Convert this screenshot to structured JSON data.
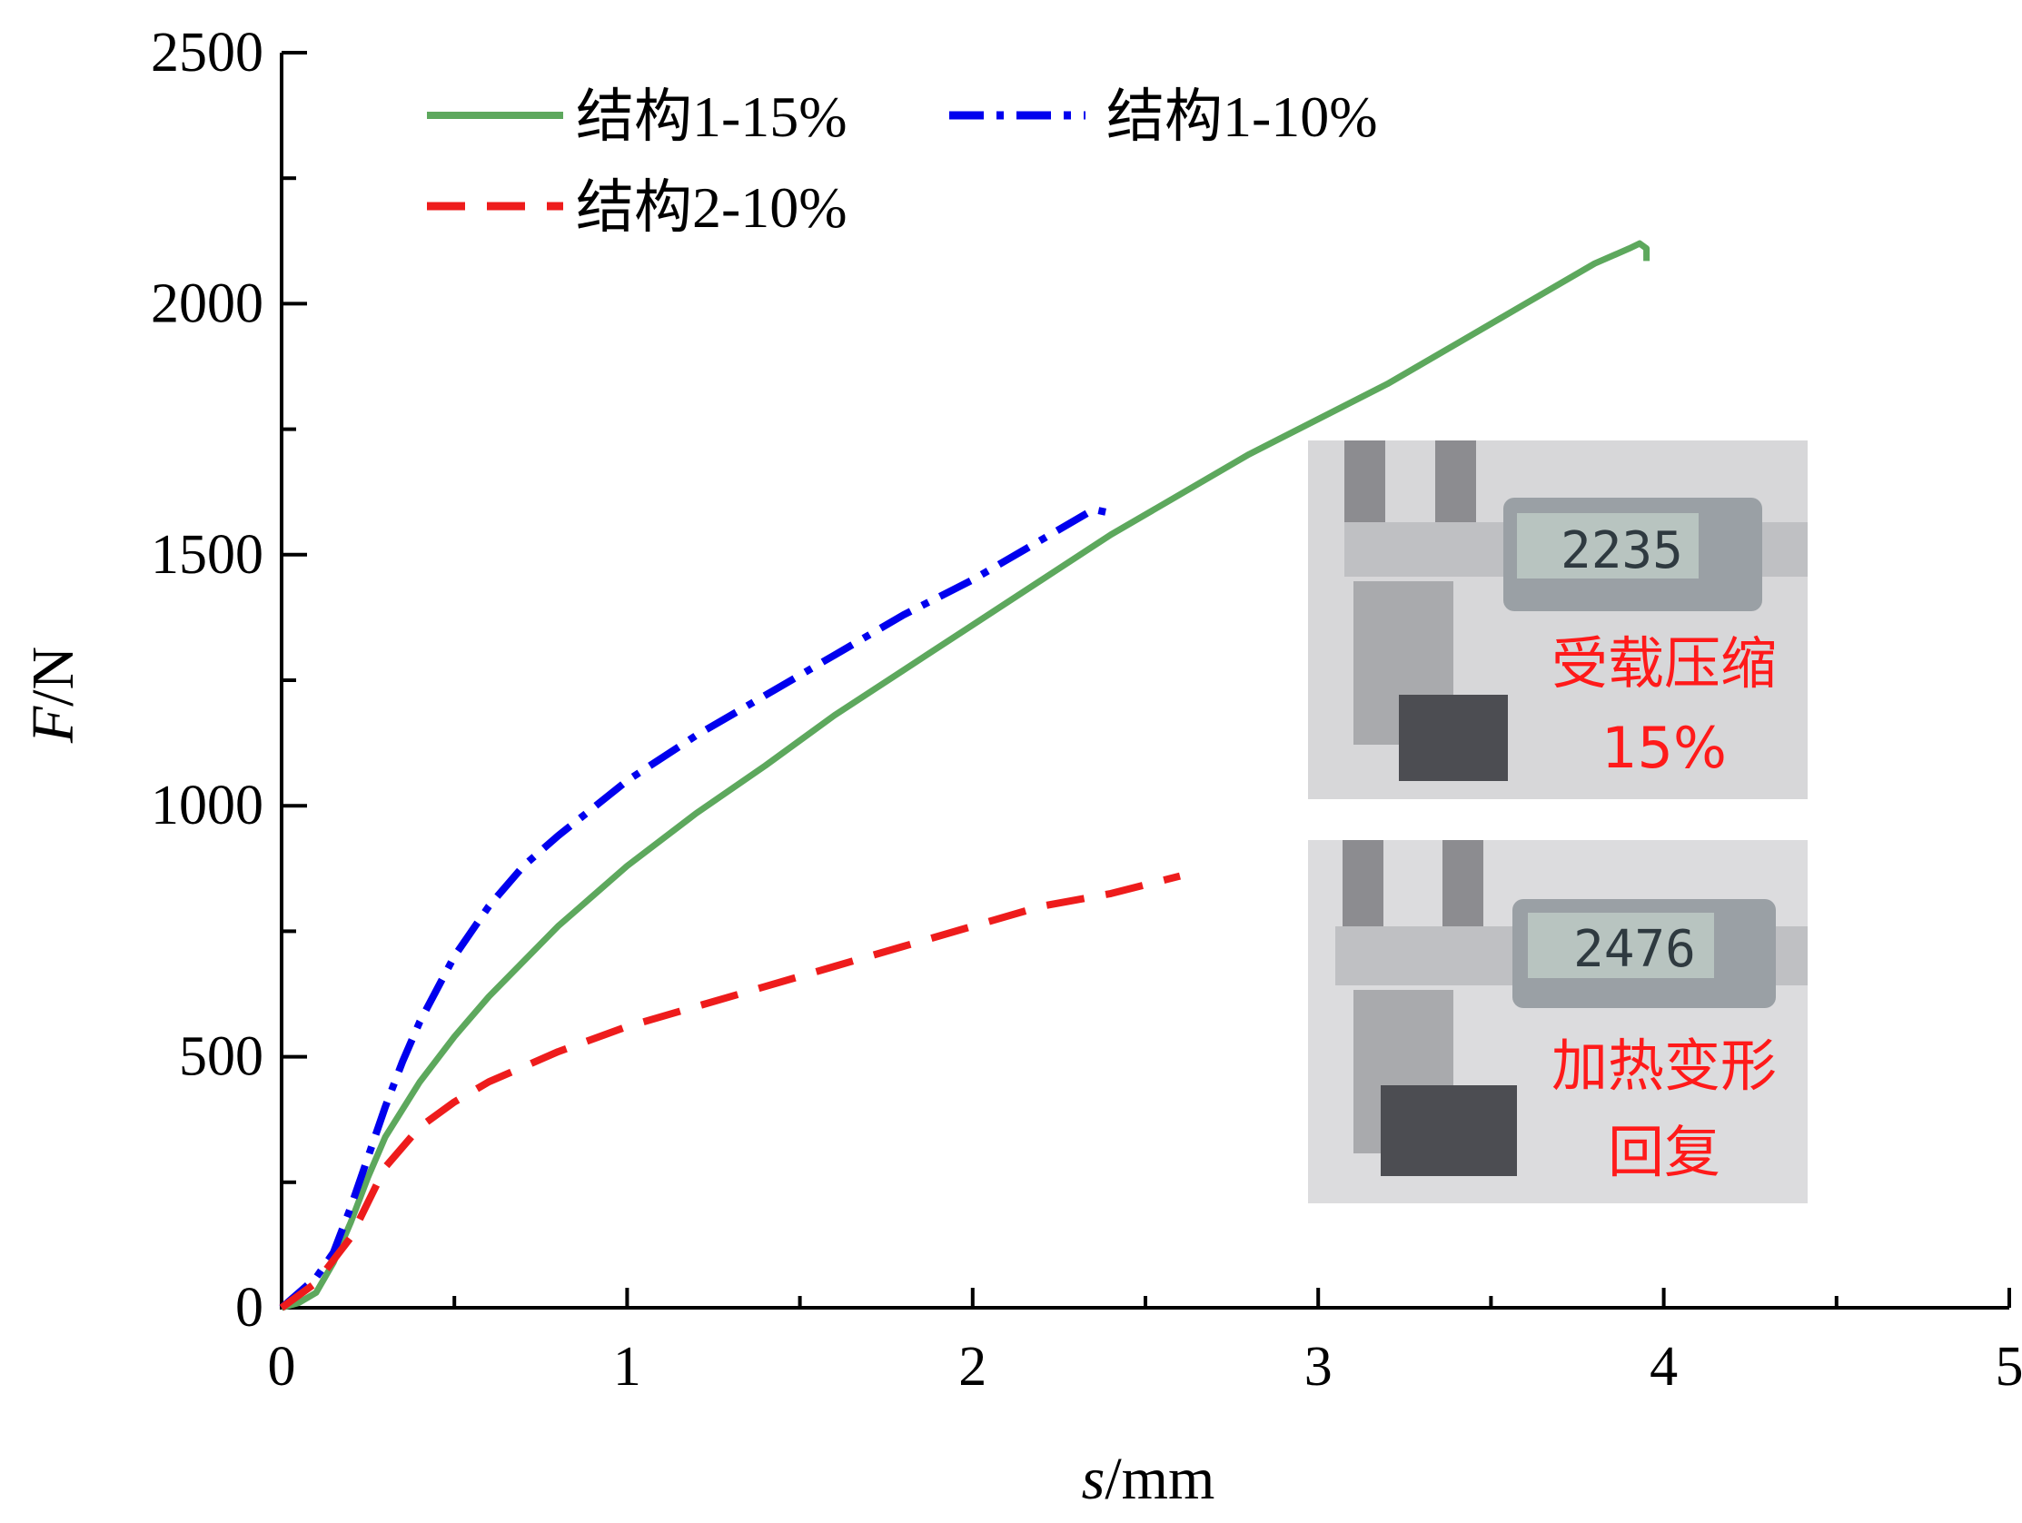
{
  "chart_data": {
    "type": "line",
    "xlabel": {
      "var": "s",
      "unit": "/mm"
    },
    "ylabel": {
      "var": "F",
      "unit": "/N"
    },
    "xlim": [
      0,
      5
    ],
    "ylim": [
      0,
      2500
    ],
    "xticks": [
      "0",
      "1",
      "2",
      "3",
      "4",
      "5"
    ],
    "yticks": [
      "0",
      "500",
      "1000",
      "1500",
      "2000",
      "2500"
    ],
    "x_tick_values": [
      0,
      1,
      2,
      3,
      4,
      5
    ],
    "y_tick_values": [
      0,
      500,
      1000,
      1500,
      2000,
      2500
    ],
    "x_minor_step": 0.5,
    "y_minor_step": 250,
    "grid": false,
    "legend_position": "top-left",
    "series": [
      {
        "name": "结构1-15%",
        "color": "#5da85d",
        "style": "solid",
        "x": [
          0,
          0.05,
          0.1,
          0.15,
          0.2,
          0.25,
          0.3,
          0.4,
          0.5,
          0.6,
          0.7,
          0.8,
          0.9,
          1.0,
          1.2,
          1.4,
          1.6,
          1.8,
          2.0,
          2.2,
          2.4,
          2.6,
          2.8,
          3.0,
          3.2,
          3.4,
          3.6,
          3.8,
          3.9,
          3.93,
          3.95,
          3.95
        ],
        "y": [
          0,
          10,
          30,
          90,
          170,
          260,
          340,
          450,
          540,
          620,
          690,
          760,
          820,
          880,
          985,
          1080,
          1180,
          1270,
          1360,
          1450,
          1540,
          1620,
          1700,
          1770,
          1840,
          1920,
          2000,
          2080,
          2110,
          2120,
          2110,
          2085
        ]
      },
      {
        "name": "结构1-10%",
        "color": "#0000ee",
        "style": "dashdot",
        "x": [
          0,
          0.1,
          0.15,
          0.2,
          0.25,
          0.3,
          0.35,
          0.4,
          0.5,
          0.6,
          0.7,
          0.8,
          0.9,
          1.0,
          1.2,
          1.4,
          1.6,
          1.8,
          2.0,
          2.2,
          2.35,
          2.42
        ],
        "y": [
          0,
          60,
          110,
          200,
          300,
          400,
          490,
          570,
          700,
          800,
          880,
          940,
          995,
          1050,
          1140,
          1220,
          1300,
          1380,
          1450,
          1530,
          1590,
          1580
        ]
      },
      {
        "name": "结构2-10%",
        "color": "#ee1c1c",
        "style": "dashed",
        "x": [
          0,
          0.1,
          0.2,
          0.25,
          0.3,
          0.4,
          0.5,
          0.6,
          0.7,
          0.8,
          1.0,
          1.2,
          1.4,
          1.6,
          1.8,
          2.0,
          2.2,
          2.4,
          2.6
        ],
        "y": [
          0,
          50,
          140,
          210,
          280,
          360,
          410,
          450,
          480,
          510,
          560,
          600,
          640,
          680,
          720,
          760,
          800,
          825,
          860
        ]
      }
    ]
  },
  "insets": [
    {
      "label_line1": "受载压缩",
      "label_line2": "15%",
      "caliper_reading": "2235"
    },
    {
      "label_line1": "加热变形",
      "label_line2": "回复",
      "caliper_reading": "2476"
    }
  ]
}
